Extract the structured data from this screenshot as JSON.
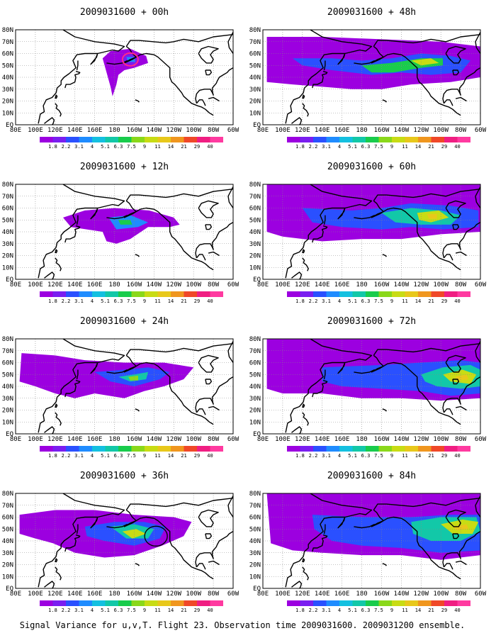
{
  "figure": {
    "caption": "Signal Variance for u,v,T. Flight 23. Observation time 2009031600. 2009031200 ensemble."
  },
  "chart_data": {
    "type": "heatmap",
    "lon_ticks": [
      "80E",
      "100E",
      "120E",
      "140E",
      "160E",
      "180",
      "160W",
      "140W",
      "120W",
      "100W",
      "80W",
      "60W"
    ],
    "lat_ticks": [
      "80N",
      "70N",
      "60N",
      "50N",
      "40N",
      "30N",
      "20N",
      "10N",
      "EQ"
    ],
    "colorbar": {
      "levels": [
        "1.8",
        "2.2",
        "3.1",
        "4",
        "5.1",
        "6.3",
        "7.5",
        "9",
        "11",
        "14",
        "21",
        "29",
        "40"
      ],
      "level_values": [
        1.8,
        2.2,
        3.1,
        4,
        5.1,
        6.3,
        7.5,
        9,
        11,
        14,
        21,
        29,
        40
      ],
      "colors": [
        "#9c00e0",
        "#7a1ef0",
        "#2a50ff",
        "#1f8cff",
        "#14c0e0",
        "#12c8a8",
        "#19cc4c",
        "#8ad81a",
        "#c8dc14",
        "#e8c81a",
        "#f0961e",
        "#f04828",
        "#f01e82",
        "#ff3aa0"
      ]
    },
    "panels": [
      {
        "title": "2009031600 + 00h",
        "lead_hours": 0,
        "column": "left",
        "row": 1,
        "marker": "pink-circle",
        "max_level": "5.1"
      },
      {
        "title": "2009031600 + 12h",
        "lead_hours": 12,
        "column": "left",
        "row": 2,
        "max_level": "9"
      },
      {
        "title": "2009031600 + 24h",
        "lead_hours": 24,
        "column": "left",
        "row": 3,
        "max_level": "9"
      },
      {
        "title": "2009031600 + 36h",
        "lead_hours": 36,
        "column": "left",
        "row": 4,
        "marker": "black-circle",
        "max_level": "11"
      },
      {
        "title": "2009031600 + 48h",
        "lead_hours": 48,
        "column": "right",
        "row": 1,
        "max_level": "11"
      },
      {
        "title": "2009031600 + 60h",
        "lead_hours": 60,
        "column": "right",
        "row": 2,
        "max_level": "14"
      },
      {
        "title": "2009031600 + 72h",
        "lead_hours": 72,
        "column": "right",
        "row": 3,
        "max_level": "14"
      },
      {
        "title": "2009031600 + 84h",
        "lead_hours": 84,
        "column": "right",
        "row": 4,
        "max_level": "14"
      }
    ]
  }
}
